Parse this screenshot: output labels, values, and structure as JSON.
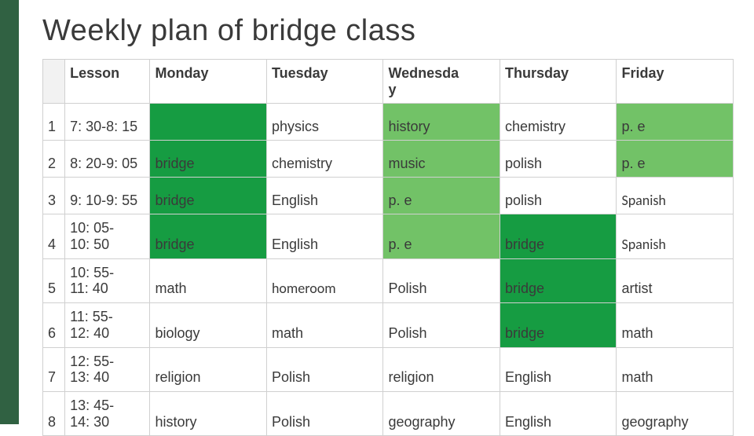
{
  "title": "Weekly plan of bridge class",
  "colors": {
    "accent_border": "#306142",
    "light_green": "#72c267",
    "dark_green": "#169c42",
    "header_grey": "#f2f2f2",
    "grid": "#d0d0d0",
    "text": "#3a3a3a",
    "background": "#ffffff"
  },
  "typography": {
    "title_fontsize": 38,
    "cell_fontsize": 18,
    "font_family": "Arial"
  },
  "table": {
    "headers": [
      "",
      "Lesson",
      "Monday",
      "Tuesday",
      "Wednesda\ny",
      "Thursday",
      "Friday"
    ],
    "rows": [
      {
        "n": "1",
        "lesson": "7: 30-8: 15",
        "mon": "",
        "monHL": "dg",
        "tue": "physics",
        "wed": "history",
        "wedHL": "lg",
        "thu": "chemistry",
        "fri": "p. e",
        "friHL": "lg"
      },
      {
        "n": "2",
        "lesson": "8: 20-9: 05",
        "mon": "bridge",
        "monHL": "dg",
        "tue": "chemistry",
        "wed": "music",
        "wedHL": "lg",
        "thu": "polish",
        "fri": "p. e",
        "friHL": "lg"
      },
      {
        "n": "3",
        "lesson": "9: 10-9: 55",
        "mon": "bridge",
        "monHL": "dg",
        "tue": "English",
        "wed": "p. e",
        "wedHL": "lg",
        "thu": "polish",
        "fri": "Spanish",
        "friFont": "calibri"
      },
      {
        "n": "4",
        "lesson": "10: 05-\n10: 50",
        "mon": "bridge",
        "monHL": "dg",
        "tue": "English",
        "wed": "p. e",
        "wedHL": "lg",
        "thu": "bridge",
        "thuHL": "dg",
        "fri": "Spanish",
        "friFont": "calibri"
      },
      {
        "n": "5",
        "lesson": "10: 55-\n11: 40",
        "mon": "math",
        "tue": "homeroom",
        "tueFont": "calibri",
        "wed": "Polish",
        "thu": "bridge",
        "thuHL": "dg",
        "fri": "artist"
      },
      {
        "n": "6",
        "lesson": "11: 55-\n12: 40",
        "mon": "biology",
        "tue": "math",
        "wed": "Polish",
        "thu": "bridge",
        "thuHL": "dg",
        "fri": "math"
      },
      {
        "n": "7",
        "lesson": "12: 55-\n13: 40",
        "mon": "religion",
        "tue": "Polish",
        "wed": "religion",
        "thu": "English",
        "fri": "math"
      },
      {
        "n": "8",
        "lesson": "13: 45-\n14: 30",
        "mon": "history",
        "tue": "Polish",
        "wed": "geography",
        "thu": "English",
        "fri": "geography"
      }
    ]
  }
}
